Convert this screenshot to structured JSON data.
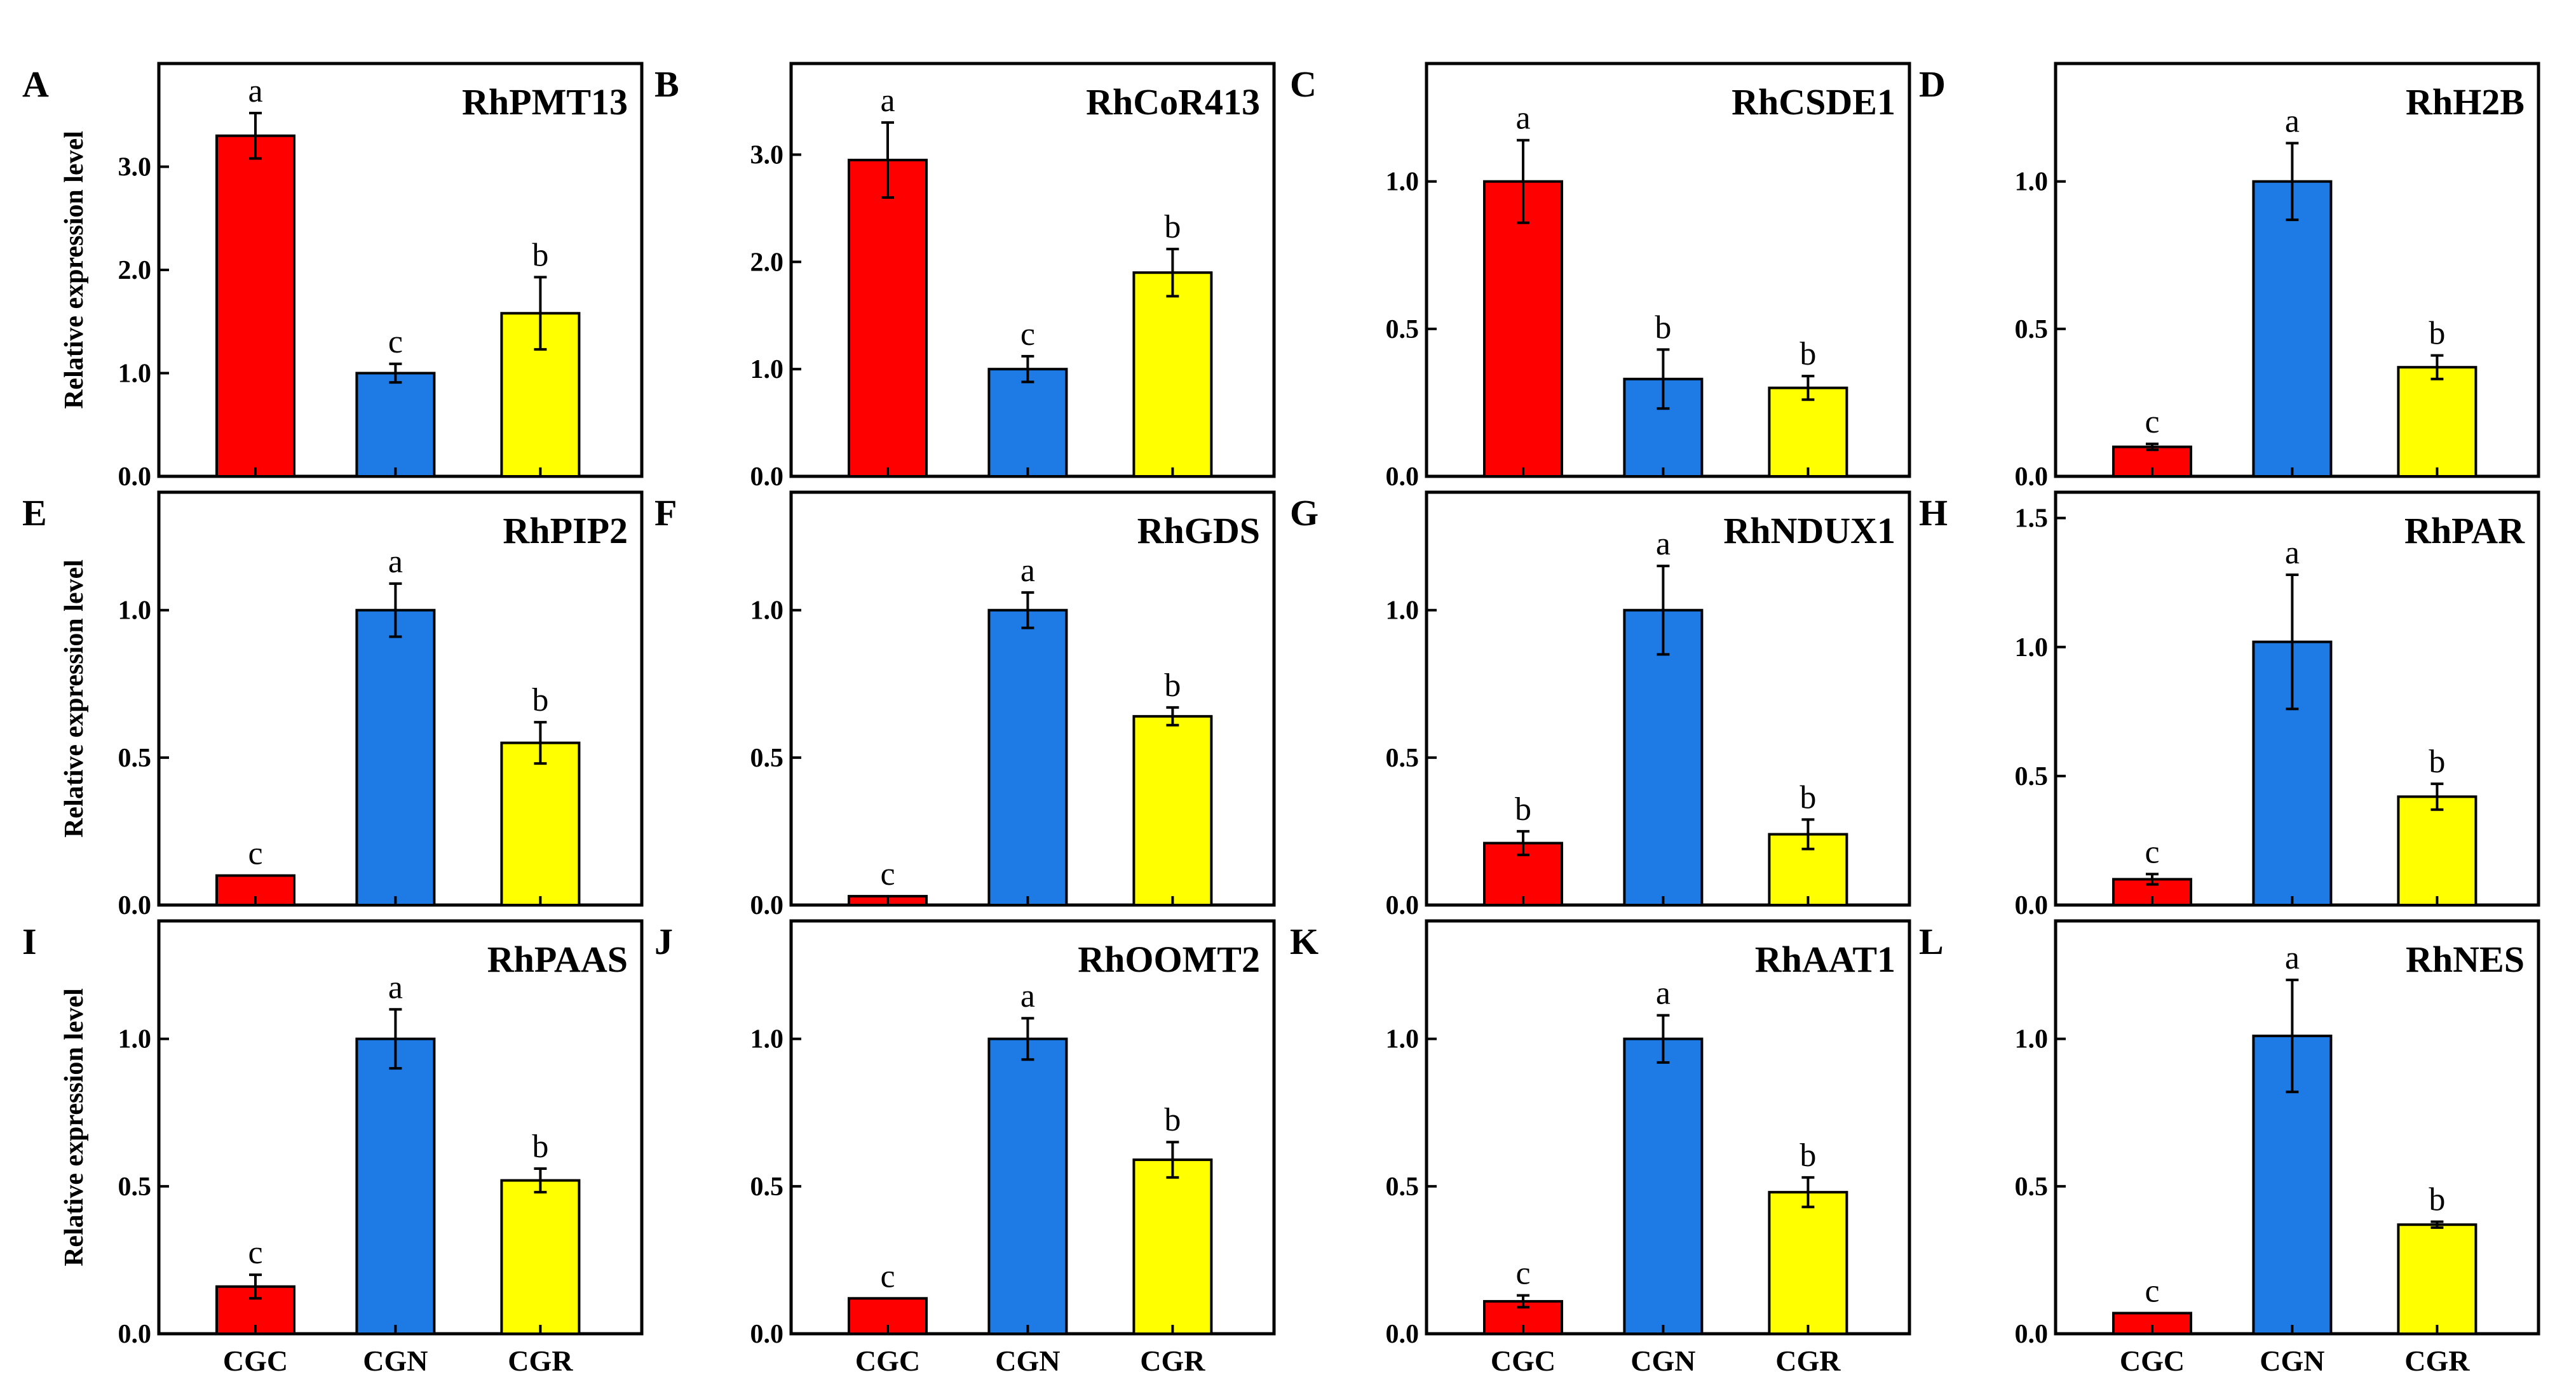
{
  "figure": {
    "y_axis_title": "Relative expression level",
    "categories": [
      "CGC",
      "CGN",
      "CGR"
    ],
    "colors": {
      "CGC": "#ff0000",
      "CGN": "#1e7be6",
      "CGR": "#ffff00"
    }
  },
  "chart_data": [
    {
      "type": "bar",
      "panel": "A",
      "title": "RhPMT13",
      "categories": [
        "CGC",
        "CGN",
        "CGR"
      ],
      "values": [
        3.3,
        1.0,
        1.58
      ],
      "errors": [
        0.22,
        0.09,
        0.35
      ],
      "letters": [
        "a",
        "c",
        "b"
      ],
      "ylim": [
        0,
        4.0
      ],
      "yticks": [
        0.0,
        1.0,
        2.0,
        3.0
      ],
      "ytick_labels": [
        "0.0",
        "1.0",
        "2.0",
        "3.0"
      ],
      "ylabel": "Relative expression level",
      "show_y_title": true,
      "show_x_labels": false
    },
    {
      "type": "bar",
      "panel": "B",
      "title": "RhCoR413",
      "categories": [
        "CGC",
        "CGN",
        "CGR"
      ],
      "values": [
        2.95,
        1.0,
        1.9
      ],
      "errors": [
        0.35,
        0.12,
        0.22
      ],
      "letters": [
        "a",
        "c",
        "b"
      ],
      "ylim": [
        0,
        3.85
      ],
      "yticks": [
        0.0,
        1.0,
        2.0,
        3.0
      ],
      "ytick_labels": [
        "0.0",
        "1.0",
        "2.0",
        "3.0"
      ],
      "ylabel": "",
      "show_y_title": false,
      "show_x_labels": false
    },
    {
      "type": "bar",
      "panel": "C",
      "title": "RhCSDE1",
      "categories": [
        "CGC",
        "CGN",
        "CGR"
      ],
      "values": [
        1.0,
        0.33,
        0.3
      ],
      "errors": [
        0.14,
        0.1,
        0.04
      ],
      "letters": [
        "a",
        "b",
        "b"
      ],
      "ylim": [
        0,
        1.4
      ],
      "yticks": [
        0.0,
        0.5,
        1.0
      ],
      "ytick_labels": [
        "0.0",
        "0.5",
        "1.0"
      ],
      "ylabel": "",
      "show_y_title": false,
      "show_x_labels": false
    },
    {
      "type": "bar",
      "panel": "D",
      "title": "RhH2B",
      "categories": [
        "CGC",
        "CGN",
        "CGR"
      ],
      "values": [
        0.1,
        1.0,
        0.37
      ],
      "errors": [
        0.01,
        0.13,
        0.04
      ],
      "letters": [
        "c",
        "a",
        "b"
      ],
      "ylim": [
        0,
        1.4
      ],
      "yticks": [
        0.0,
        0.5,
        1.0
      ],
      "ytick_labels": [
        "0.0",
        "0.5",
        "1.0"
      ],
      "ylabel": "",
      "show_y_title": false,
      "show_x_labels": false
    },
    {
      "type": "bar",
      "panel": "E",
      "title": "RhPIP2",
      "categories": [
        "CGC",
        "CGN",
        "CGR"
      ],
      "values": [
        0.1,
        1.0,
        0.55
      ],
      "errors": [
        0.0,
        0.09,
        0.07
      ],
      "letters": [
        "c",
        "a",
        "b"
      ],
      "ylim": [
        0,
        1.4
      ],
      "yticks": [
        0.0,
        0.5,
        1.0
      ],
      "ytick_labels": [
        "0.0",
        "0.5",
        "1.0"
      ],
      "ylabel": "Relative expression level",
      "show_y_title": true,
      "show_x_labels": false
    },
    {
      "type": "bar",
      "panel": "F",
      "title": "RhGDS",
      "categories": [
        "CGC",
        "CGN",
        "CGR"
      ],
      "values": [
        0.03,
        1.0,
        0.64
      ],
      "errors": [
        0.0,
        0.06,
        0.03
      ],
      "letters": [
        "c",
        "a",
        "b"
      ],
      "ylim": [
        0,
        1.4
      ],
      "yticks": [
        0.0,
        0.5,
        1.0
      ],
      "ytick_labels": [
        "0.0",
        "0.5",
        "1.0"
      ],
      "ylabel": "",
      "show_y_title": false,
      "show_x_labels": false
    },
    {
      "type": "bar",
      "panel": "G",
      "title": "RhNDUX1",
      "categories": [
        "CGC",
        "CGN",
        "CGR"
      ],
      "values": [
        0.21,
        1.0,
        0.24
      ],
      "errors": [
        0.04,
        0.15,
        0.05
      ],
      "letters": [
        "b",
        "a",
        "b"
      ],
      "ylim": [
        0,
        1.4
      ],
      "yticks": [
        0.0,
        0.5,
        1.0
      ],
      "ytick_labels": [
        "0.0",
        "0.5",
        "1.0"
      ],
      "ylabel": "",
      "show_y_title": false,
      "show_x_labels": false
    },
    {
      "type": "bar",
      "panel": "H",
      "title": "RhPAR",
      "categories": [
        "CGC",
        "CGN",
        "CGR"
      ],
      "values": [
        0.1,
        1.02,
        0.42
      ],
      "errors": [
        0.02,
        0.26,
        0.05
      ],
      "letters": [
        "c",
        "a",
        "b"
      ],
      "ylim": [
        0,
        1.6
      ],
      "yticks": [
        0.0,
        0.5,
        1.0,
        1.5
      ],
      "ytick_labels": [
        "0.0",
        "0.5",
        "1.0",
        "1.5"
      ],
      "ylabel": "",
      "show_y_title": false,
      "show_x_labels": false
    },
    {
      "type": "bar",
      "panel": "I",
      "title": "RhPAAS",
      "categories": [
        "CGC",
        "CGN",
        "CGR"
      ],
      "values": [
        0.16,
        1.0,
        0.52
      ],
      "errors": [
        0.04,
        0.1,
        0.04
      ],
      "letters": [
        "c",
        "a",
        "b"
      ],
      "ylim": [
        0,
        1.4
      ],
      "yticks": [
        0.0,
        0.5,
        1.0
      ],
      "ytick_labels": [
        "0.0",
        "0.5",
        "1.0"
      ],
      "ylabel": "Relative expression level",
      "show_y_title": true,
      "show_x_labels": true
    },
    {
      "type": "bar",
      "panel": "J",
      "title": "RhOOMT2",
      "categories": [
        "CGC",
        "CGN",
        "CGR"
      ],
      "values": [
        0.12,
        1.0,
        0.59
      ],
      "errors": [
        0.0,
        0.07,
        0.06
      ],
      "letters": [
        "c",
        "a",
        "b"
      ],
      "ylim": [
        0,
        1.4
      ],
      "yticks": [
        0.0,
        0.5,
        1.0
      ],
      "ytick_labels": [
        "0.0",
        "0.5",
        "1.0"
      ],
      "ylabel": "",
      "show_y_title": false,
      "show_x_labels": true
    },
    {
      "type": "bar",
      "panel": "K",
      "title": "RhAAT1",
      "categories": [
        "CGC",
        "CGN",
        "CGR"
      ],
      "values": [
        0.11,
        1.0,
        0.48
      ],
      "errors": [
        0.02,
        0.08,
        0.05
      ],
      "letters": [
        "c",
        "a",
        "b"
      ],
      "ylim": [
        0,
        1.4
      ],
      "yticks": [
        0.0,
        0.5,
        1.0
      ],
      "ytick_labels": [
        "0.0",
        "0.5",
        "1.0"
      ],
      "ylabel": "",
      "show_y_title": false,
      "show_x_labels": true
    },
    {
      "type": "bar",
      "panel": "L",
      "title": "RhNES",
      "categories": [
        "CGC",
        "CGN",
        "CGR"
      ],
      "values": [
        0.07,
        1.01,
        0.37
      ],
      "errors": [
        0.0,
        0.19,
        0.01
      ],
      "letters": [
        "c",
        "a",
        "b"
      ],
      "ylim": [
        0,
        1.4
      ],
      "yticks": [
        0.0,
        0.5,
        1.0
      ],
      "ytick_labels": [
        "0.0",
        "0.5",
        "1.0"
      ],
      "ylabel": "",
      "show_y_title": false,
      "show_x_labels": true
    }
  ]
}
